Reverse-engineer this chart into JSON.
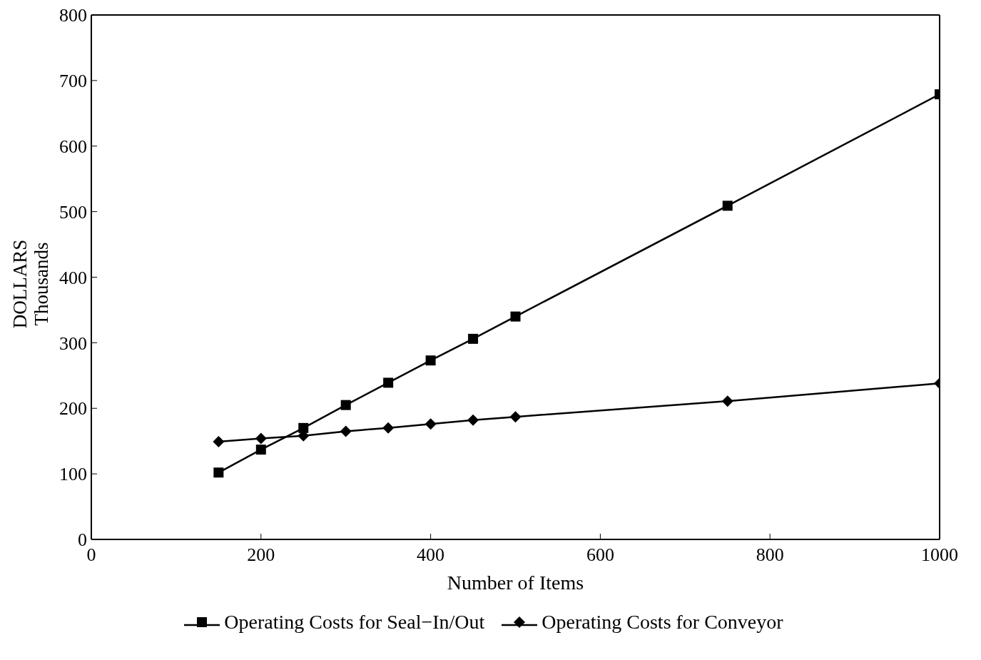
{
  "chart_data": {
    "type": "line",
    "xlabel": "Number of Items",
    "ylabel": "DOLLARS\nThousands",
    "xlim": [
      0,
      1000
    ],
    "xticks": [
      0,
      200,
      400,
      600,
      800,
      1000
    ],
    "ylim": [
      0,
      800
    ],
    "yticks": [
      0,
      100,
      200,
      300,
      400,
      500,
      600,
      700,
      800
    ],
    "legend": "bottom",
    "line_style": "solid",
    "series": [
      {
        "name": "Operating Costs for Seal−In/Out",
        "color": "#000000",
        "marker": "square",
        "x": [
          150,
          200,
          250,
          300,
          350,
          400,
          450,
          500,
          750,
          1000
        ],
        "values": [
          102,
          137,
          170,
          205,
          239,
          273,
          306,
          340,
          509,
          679
        ]
      },
      {
        "name": "Operating Costs for Conveyor",
        "color": "#000000",
        "marker": "diamond",
        "x": [
          150,
          200,
          250,
          300,
          350,
          400,
          450,
          500,
          750,
          1000
        ],
        "values": [
          149,
          154,
          158,
          165,
          170,
          176,
          182,
          187,
          211,
          238
        ]
      }
    ]
  }
}
